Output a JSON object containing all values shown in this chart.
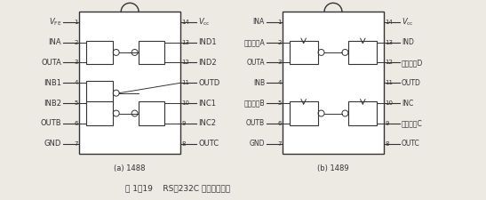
{
  "title": "图 1－19    RS－232C 电平转换芯片",
  "chip_a_label": "(a) 1488",
  "chip_b_label": "(b) 1489",
  "chip_a_left_pins": [
    {
      "num": "1",
      "name": "V_FE"
    },
    {
      "num": "2",
      "name": "INA"
    },
    {
      "num": "3",
      "name": "OUTA"
    },
    {
      "num": "4",
      "name": "INB1"
    },
    {
      "num": "5",
      "name": "INB2"
    },
    {
      "num": "6",
      "name": "OUTB"
    },
    {
      "num": "7",
      "name": "GND"
    }
  ],
  "chip_a_right_pins": [
    {
      "num": "14",
      "name": "V_cc"
    },
    {
      "num": "13",
      "name": "IND1"
    },
    {
      "num": "12",
      "name": "IND2"
    },
    {
      "num": "11",
      "name": "OUTD"
    },
    {
      "num": "10",
      "name": "INC1"
    },
    {
      "num": "9",
      "name": "INC2"
    },
    {
      "num": "8",
      "name": "OUTC"
    }
  ],
  "chip_b_left_pins": [
    {
      "num": "1",
      "name": "INA"
    },
    {
      "num": "2",
      "name": "响应控制A"
    },
    {
      "num": "3",
      "name": "OUTA"
    },
    {
      "num": "4",
      "name": "INB"
    },
    {
      "num": "5",
      "name": "响应控制B"
    },
    {
      "num": "6",
      "name": "OUTB"
    },
    {
      "num": "7",
      "name": "GND"
    }
  ],
  "chip_b_right_pins": [
    {
      "num": "14",
      "name": "V_cc"
    },
    {
      "num": "13",
      "name": "IND"
    },
    {
      "num": "12",
      "name": "响应控制D"
    },
    {
      "num": "11",
      "name": "OUTD"
    },
    {
      "num": "10",
      "name": "INC"
    },
    {
      "num": "9",
      "name": "响应控制C"
    },
    {
      "num": "8",
      "name": "OUTC"
    }
  ],
  "line_color": "#333333",
  "bg_color": "#ede9e3",
  "font_size": 6.0,
  "small_font": 5.0
}
